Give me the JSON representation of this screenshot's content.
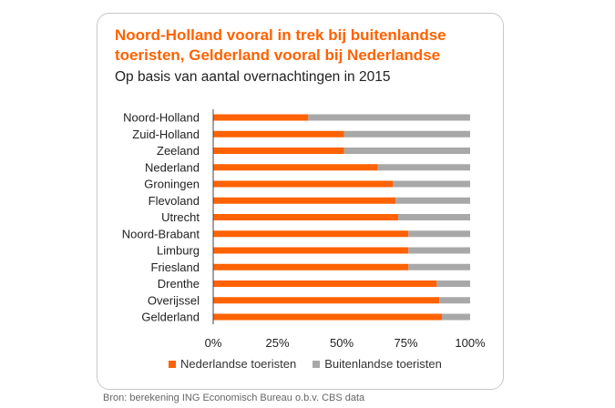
{
  "title": "Noord-Holland vooral in trek bij buitenlandse toeristen, Gelderland vooral bij Nederlandse",
  "subtitle": "Op basis van aantal overnachtingen in 2015",
  "source": "Bron: berekening ING Economisch Bureau o.b.v. CBS data",
  "colors": {
    "dutch": "#ff6200",
    "foreign": "#a8a8a8"
  },
  "chart_data": {
    "type": "bar",
    "orientation": "horizontal",
    "stacked": true,
    "categories": [
      "Noord-Holland",
      "Zuid-Holland",
      "Zeeland",
      "Nederland",
      "Groningen",
      "Flevoland",
      "Utrecht",
      "Noord-Brabant",
      "Limburg",
      "Friesland",
      "Drenthe",
      "Overijssel",
      "Gelderland"
    ],
    "series": [
      {
        "name": "Nederlandse toeristen",
        "values": [
          37,
          51,
          51,
          64,
          70,
          71,
          72,
          76,
          76,
          76,
          87,
          88,
          89
        ]
      },
      {
        "name": "Buitenlandse toeristen",
        "values": [
          63,
          49,
          49,
          36,
          30,
          29,
          28,
          24,
          24,
          24,
          13,
          12,
          11
        ]
      }
    ],
    "xlim": [
      0,
      100
    ],
    "xticks": [
      "0%",
      "25%",
      "50%",
      "75%",
      "100%"
    ],
    "grid": false,
    "legend_position": "bottom"
  }
}
